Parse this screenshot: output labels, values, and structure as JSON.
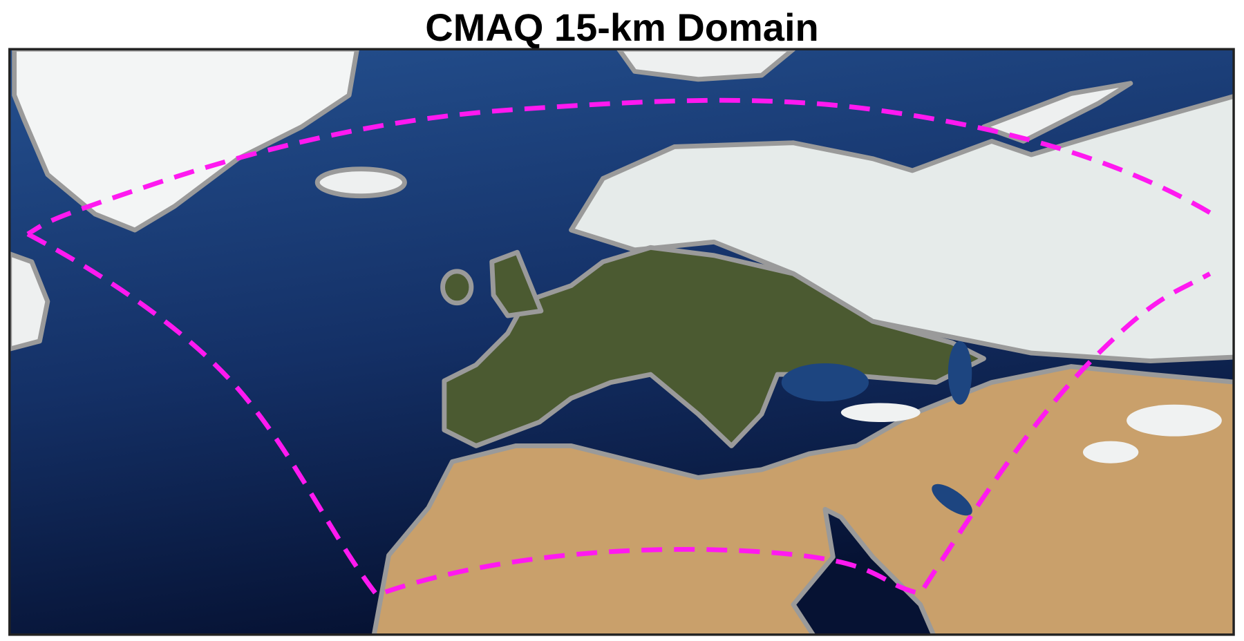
{
  "title": "CMAQ 15-km Domain"
}
